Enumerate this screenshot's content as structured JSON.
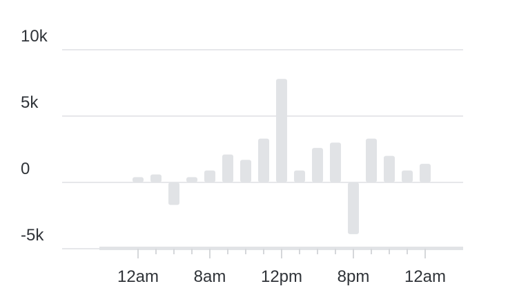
{
  "colors": {
    "bar": "#e1e3e6",
    "grid": "#e6e7ea",
    "baseline": "#e1e3e6",
    "tick": "#d5d7da",
    "text": "#2f3338"
  },
  "chart_data": {
    "type": "bar",
    "title": "",
    "xlabel": "",
    "ylabel": "",
    "ylim": [
      -5000,
      10000
    ],
    "y_ticks": [
      {
        "value": 10000,
        "label": "10k"
      },
      {
        "value": 5000,
        "label": "5k"
      },
      {
        "value": 0,
        "label": "0"
      },
      {
        "value": -5000,
        "label": "-5k"
      }
    ],
    "x_tick_labels": [
      {
        "bar_index": 2,
        "label": "12am"
      },
      {
        "bar_index": 6,
        "label": "8am"
      },
      {
        "bar_index": 10,
        "label": "12pm"
      },
      {
        "bar_index": 14,
        "label": "8pm"
      },
      {
        "bar_index": 18,
        "label": "12am"
      }
    ],
    "grid": true,
    "legend": "none",
    "values": [
      0,
      0,
      400,
      600,
      -1700,
      400,
      900,
      2100,
      1700,
      3300,
      7800,
      900,
      2600,
      3000,
      -3900,
      3300,
      2000,
      900,
      1400,
      0,
      0
    ]
  }
}
